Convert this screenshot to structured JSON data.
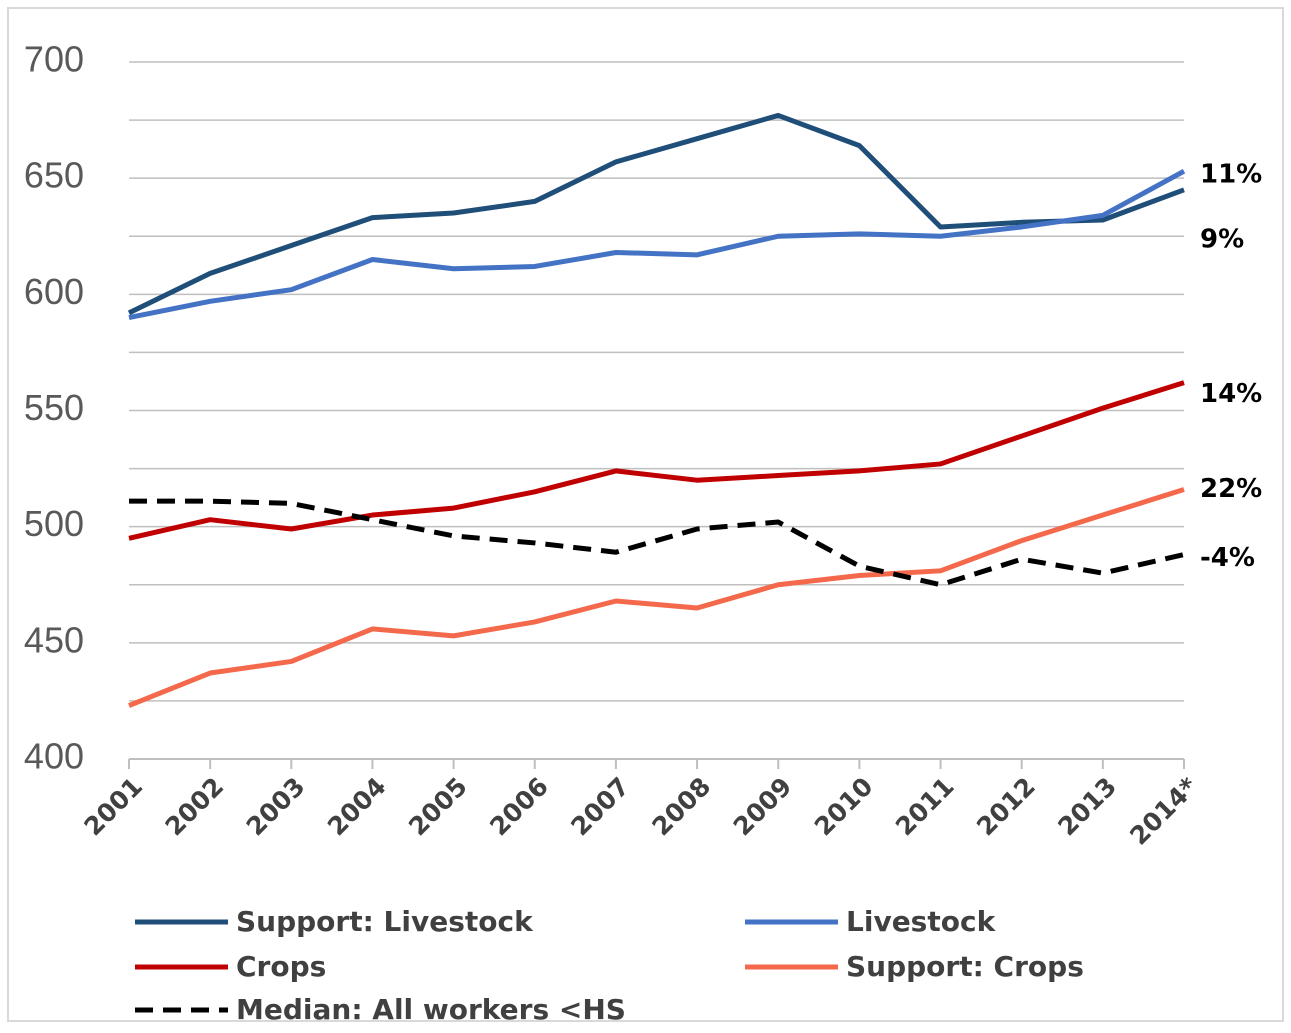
{
  "chart_data": {
    "type": "line",
    "categories": [
      "2001",
      "2002",
      "2003",
      "2004",
      "2005",
      "2006",
      "2007",
      "2008",
      "2009",
      "2010",
      "2011",
      "2012",
      "2013",
      "2014*"
    ],
    "ylim": [
      400,
      700
    ],
    "yticks": [
      400,
      450,
      500,
      550,
      600,
      650,
      700
    ],
    "yminorticks": [
      425,
      475,
      525,
      575,
      625,
      675
    ],
    "grid": true,
    "legend": "bottom",
    "series": [
      {
        "name": "Support: Livestock",
        "color": "#1f4e79",
        "dashed": false,
        "end_label": "9%",
        "values": [
          592,
          609,
          621,
          633,
          635,
          640,
          657,
          667,
          677,
          664,
          629,
          631,
          632,
          645
        ]
      },
      {
        "name": "Livestock",
        "color": "#4472c4",
        "dashed": false,
        "end_label": "11%",
        "values": [
          590,
          597,
          602,
          615,
          611,
          612,
          618,
          617,
          625,
          626,
          625,
          629,
          634,
          653
        ]
      },
      {
        "name": "Crops",
        "color": "#c00000",
        "dashed": false,
        "end_label": "14%",
        "values": [
          495,
          503,
          499,
          505,
          508,
          515,
          524,
          520,
          522,
          524,
          527,
          539,
          551,
          562
        ]
      },
      {
        "name": "Support: Crops",
        "color": "#f4694b",
        "dashed": false,
        "end_label": "22%",
        "values": [
          423,
          437,
          442,
          456,
          453,
          459,
          468,
          465,
          475,
          479,
          481,
          494,
          505,
          516
        ]
      },
      {
        "name": "Median: All workers <HS",
        "color": "#000000",
        "dashed": true,
        "end_label": "-4%",
        "values": [
          511,
          511,
          510,
          503,
          496,
          493,
          489,
          499,
          502,
          483,
          475,
          486,
          480,
          488
        ]
      }
    ]
  }
}
